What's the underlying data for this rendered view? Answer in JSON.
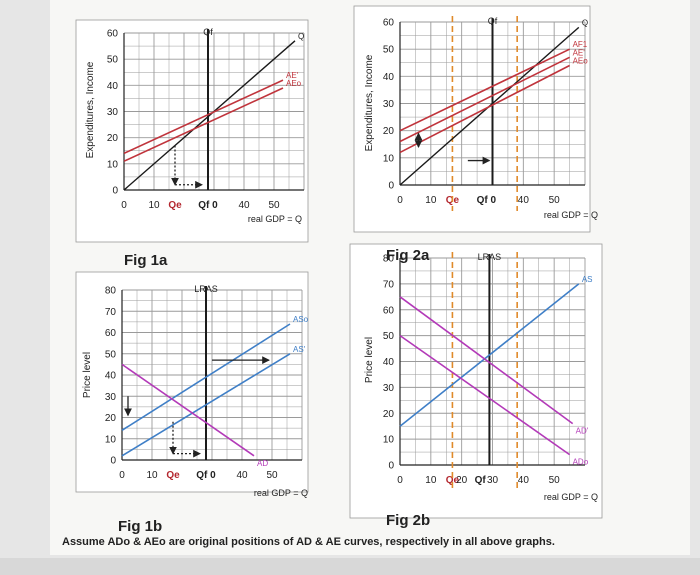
{
  "colors": {
    "background": "#e6e6e6",
    "paper": "#f7f7f5",
    "grid": "#9a9a9a",
    "diagonal": "#1a1a1a",
    "ae": "#c0343c",
    "ad": "#b33ab8",
    "as": "#3f7fc7",
    "vertical": "#1c1c1c",
    "guide": "#e08a2a",
    "annot": "#222222"
  },
  "footer": "Assume ADo & AEo are original positions of AD & AE curves, respectively in all above graphs.",
  "chart_data": [
    {
      "id": "fig1a",
      "type": "line",
      "title": "Fig 1a",
      "ylabel": "Expenditures, Income",
      "xlabel": "real GDP = Q",
      "xlim": [
        0,
        60
      ],
      "ylim": [
        0,
        60
      ],
      "grid": true,
      "x_tick_labels": [
        {
          "x": 0,
          "label": "0"
        },
        {
          "x": 10,
          "label": "10"
        },
        {
          "x": 17,
          "label": "Qe"
        },
        {
          "x": 28,
          "label": "Qf 0"
        },
        {
          "x": 40,
          "label": "40"
        },
        {
          "x": 50,
          "label": "50"
        }
      ],
      "y_tick_labels": [
        {
          "y": 0,
          "label": "0"
        },
        {
          "y": 10,
          "label": "10"
        },
        {
          "y": 20,
          "label": "20"
        },
        {
          "y": 30,
          "label": "30"
        },
        {
          "y": 40,
          "label": "40"
        },
        {
          "y": 50,
          "label": "50"
        },
        {
          "y": 60,
          "label": "60"
        }
      ],
      "series": [
        {
          "name": "Q",
          "role": "diagonal",
          "points": [
            [
              0,
              0
            ],
            [
              57,
              57
            ]
          ]
        },
        {
          "name": "AE'",
          "role": "ae",
          "points": [
            [
              0,
              14
            ],
            [
              53,
              42
            ]
          ]
        },
        {
          "name": "AEo",
          "role": "ae",
          "points": [
            [
              0,
              11
            ],
            [
              53,
              39
            ]
          ]
        }
      ],
      "verticals": [
        {
          "x": 28,
          "label": "Qf"
        }
      ],
      "annotations": [
        {
          "kind": "dotted-arrow",
          "from": [
            17,
            17
          ],
          "to": [
            17,
            2
          ]
        },
        {
          "kind": "dotted-arrow",
          "from": [
            17,
            2
          ],
          "to": [
            26,
            2
          ]
        }
      ]
    },
    {
      "id": "fig2a",
      "type": "line",
      "title": "Fig 2a",
      "ylabel": "Expenditures, Income",
      "xlabel": "real GDP = Q",
      "xlim": [
        0,
        60
      ],
      "ylim": [
        0,
        60
      ],
      "grid": true,
      "x_tick_labels": [
        {
          "x": 0,
          "label": "0"
        },
        {
          "x": 10,
          "label": "10"
        },
        {
          "x": 17,
          "label": "Qe"
        },
        {
          "x": 28,
          "label": "Qf 0"
        },
        {
          "x": 40,
          "label": "40"
        },
        {
          "x": 50,
          "label": "50"
        }
      ],
      "y_tick_labels": [
        {
          "y": 0,
          "label": "0"
        },
        {
          "y": 10,
          "label": "10"
        },
        {
          "y": 20,
          "label": "20"
        },
        {
          "y": 30,
          "label": "30"
        },
        {
          "y": 40,
          "label": "40"
        },
        {
          "y": 50,
          "label": "50"
        },
        {
          "y": 60,
          "label": "60"
        }
      ],
      "series": [
        {
          "name": "Q",
          "role": "diagonal",
          "points": [
            [
              0,
              0
            ],
            [
              58,
              58
            ]
          ]
        },
        {
          "name": "AF1",
          "role": "ae",
          "points": [
            [
              0,
              20
            ],
            [
              55,
              50
            ]
          ]
        },
        {
          "name": "AE'",
          "role": "ae",
          "points": [
            [
              0,
              16
            ],
            [
              55,
              47
            ]
          ]
        },
        {
          "name": "AEo",
          "role": "ae",
          "points": [
            [
              0,
              12
            ],
            [
              55,
              44
            ]
          ]
        }
      ],
      "verticals": [
        {
          "x": 30,
          "label": "Qf"
        }
      ],
      "guides": [
        {
          "x": 17
        },
        {
          "x": 38
        }
      ],
      "annotations": [
        {
          "kind": "double-arrow",
          "from": [
            6,
            19
          ],
          "to": [
            6,
            14
          ]
        },
        {
          "kind": "arrow",
          "from": [
            22,
            9
          ],
          "to": [
            29,
            9
          ]
        }
      ]
    },
    {
      "id": "fig1b",
      "type": "line",
      "title": "Fig 1b",
      "ylabel": "Price level",
      "xlabel": "real GDP = Q",
      "xlim": [
        0,
        60
      ],
      "ylim": [
        0,
        80
      ],
      "grid": true,
      "x_tick_labels": [
        {
          "x": 0,
          "label": "0"
        },
        {
          "x": 10,
          "label": "10"
        },
        {
          "x": 17,
          "label": "Qe"
        },
        {
          "x": 28,
          "label": "Qf 0"
        },
        {
          "x": 40,
          "label": "40"
        },
        {
          "x": 50,
          "label": "50"
        }
      ],
      "y_tick_labels": [
        {
          "y": 0,
          "label": "0"
        },
        {
          "y": 10,
          "label": "10"
        },
        {
          "y": 20,
          "label": "20"
        },
        {
          "y": 30,
          "label": "30"
        },
        {
          "y": 40,
          "label": "40"
        },
        {
          "y": 50,
          "label": "50"
        },
        {
          "y": 60,
          "label": "60"
        },
        {
          "y": 70,
          "label": "70"
        },
        {
          "y": 80,
          "label": "80"
        }
      ],
      "series": [
        {
          "name": "ASo",
          "role": "as",
          "points": [
            [
              0,
              14
            ],
            [
              56,
              64
            ]
          ]
        },
        {
          "name": "AS'",
          "role": "as",
          "points": [
            [
              0,
              2
            ],
            [
              56,
              50
            ]
          ]
        },
        {
          "name": "AD",
          "role": "ad",
          "points": [
            [
              0,
              45
            ],
            [
              44,
              2
            ]
          ]
        }
      ],
      "verticals": [
        {
          "x": 28,
          "label": "LRAS"
        }
      ],
      "annotations": [
        {
          "kind": "arrow",
          "from": [
            30,
            47
          ],
          "to": [
            49,
            47
          ]
        },
        {
          "kind": "arrow",
          "from": [
            2,
            30
          ],
          "to": [
            2,
            21
          ]
        },
        {
          "kind": "dotted-arrow",
          "from": [
            17,
            18
          ],
          "to": [
            17,
            3
          ]
        },
        {
          "kind": "dotted-arrow",
          "from": [
            17,
            3
          ],
          "to": [
            26,
            3
          ]
        }
      ]
    },
    {
      "id": "fig2b",
      "type": "line",
      "title": "Fig 2b",
      "ylabel": "Price level",
      "xlabel": "real GDP = Q",
      "xlim": [
        0,
        60
      ],
      "ylim": [
        0,
        80
      ],
      "grid": true,
      "x_tick_labels": [
        {
          "x": 0,
          "label": "0"
        },
        {
          "x": 10,
          "label": "10"
        },
        {
          "x": 17,
          "label": "Qe"
        },
        {
          "x": 20,
          "label": "20"
        },
        {
          "x": 26,
          "label": "Qf"
        },
        {
          "x": 30,
          "label": "30"
        },
        {
          "x": 40,
          "label": "40"
        },
        {
          "x": 50,
          "label": "50"
        }
      ],
      "y_tick_labels": [
        {
          "y": 0,
          "label": "0"
        },
        {
          "y": 10,
          "label": "10"
        },
        {
          "y": 20,
          "label": "20"
        },
        {
          "y": 30,
          "label": "30"
        },
        {
          "y": 40,
          "label": "40"
        },
        {
          "y": 50,
          "label": "50"
        },
        {
          "y": 60,
          "label": "60"
        },
        {
          "y": 70,
          "label": "70"
        },
        {
          "y": 80,
          "label": "80"
        }
      ],
      "series": [
        {
          "name": "AS",
          "role": "as",
          "points": [
            [
              0,
              15
            ],
            [
              58,
              70
            ]
          ]
        },
        {
          "name": "AD'",
          "role": "ad",
          "points": [
            [
              0,
              65
            ],
            [
              56,
              16
            ]
          ]
        },
        {
          "name": "ADo",
          "role": "ad",
          "points": [
            [
              0,
              50
            ],
            [
              55,
              4
            ]
          ]
        }
      ],
      "verticals": [
        {
          "x": 29,
          "label": "LRAS"
        }
      ],
      "guides": [
        {
          "x": 17
        },
        {
          "x": 38
        }
      ],
      "annotations": []
    }
  ]
}
